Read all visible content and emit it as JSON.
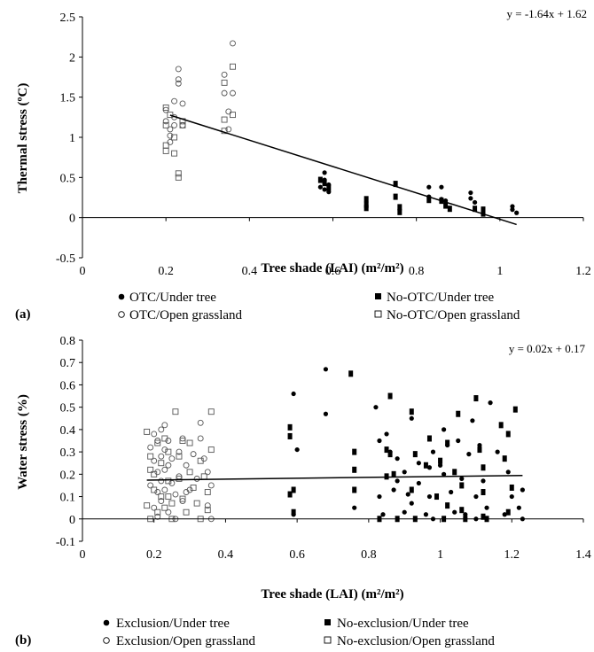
{
  "chart_data": [
    {
      "id": "a",
      "type": "scatter",
      "panel_label": "(a)",
      "xlabel": "Tree shade (LAI) (m²/m²)",
      "ylabel": "Thermal stress (ºC)",
      "xlim": [
        0,
        1.2
      ],
      "ylim": [
        -0.5,
        2.5
      ],
      "xticks": [
        0,
        0.2,
        0.4,
        0.6,
        0.8,
        1,
        1.2
      ],
      "xtick_labels": [
        "0",
        "0.2",
        "0.4",
        "0.6",
        "0.8",
        "1",
        "1.2"
      ],
      "yticks": [
        -0.5,
        0,
        0.5,
        1,
        1.5,
        2,
        2.5
      ],
      "ytick_labels": [
        "-0.5",
        "0",
        "0.5",
        "1",
        "1.5",
        "2",
        "2.5"
      ],
      "grid": false,
      "trendline": {
        "slope": -1.64,
        "intercept": 1.62,
        "x_range": [
          0.21,
          1.04
        ],
        "equation_label": "y = -1.64x + 1.62"
      },
      "legend": [
        {
          "label": "OTC/Under tree",
          "marker": "filled-circle"
        },
        {
          "label": "No-OTC/Under tree",
          "marker": "filled-square"
        },
        {
          "label": "OTC/Open grassland",
          "marker": "open-circle"
        },
        {
          "label": "No-OTC/Open grassland",
          "marker": "open-square"
        }
      ],
      "series": [
        {
          "marker": "filled-circle",
          "x": [
            0.58,
            0.58,
            0.59,
            0.57,
            0.58,
            0.59,
            0.83,
            0.83,
            0.86,
            0.86,
            0.87,
            0.93,
            0.93,
            0.94,
            1.03,
            1.03,
            1.04
          ],
          "y": [
            0.56,
            0.47,
            0.41,
            0.38,
            0.35,
            0.32,
            0.38,
            0.26,
            0.38,
            0.23,
            0.21,
            0.31,
            0.24,
            0.19,
            0.14,
            0.1,
            0.06
          ]
        },
        {
          "marker": "filled-square",
          "x": [
            0.57,
            0.58,
            0.59,
            0.68,
            0.68,
            0.68,
            0.75,
            0.75,
            0.76,
            0.76,
            0.83,
            0.86,
            0.87,
            0.88,
            0.94,
            0.96,
            0.96
          ],
          "y": [
            0.47,
            0.43,
            0.37,
            0.23,
            0.16,
            0.12,
            0.42,
            0.26,
            0.13,
            0.07,
            0.22,
            0.21,
            0.15,
            0.11,
            0.11,
            0.1,
            0.05
          ]
        },
        {
          "marker": "open-circle",
          "x": [
            0.2,
            0.2,
            0.21,
            0.21,
            0.21,
            0.22,
            0.22,
            0.22,
            0.23,
            0.23,
            0.23,
            0.24,
            0.24,
            0.34,
            0.34,
            0.35,
            0.35,
            0.36,
            0.36
          ],
          "y": [
            1.34,
            1.2,
            1.1,
            1.02,
            0.94,
            1.15,
            1.45,
            1.25,
            1.85,
            1.72,
            1.67,
            1.42,
            1.15,
            1.78,
            1.55,
            1.32,
            1.1,
            2.17,
            1.55
          ]
        },
        {
          "marker": "open-square",
          "x": [
            0.2,
            0.2,
            0.2,
            0.2,
            0.21,
            0.22,
            0.22,
            0.23,
            0.23,
            0.24,
            0.24,
            0.34,
            0.34,
            0.34,
            0.36,
            0.36
          ],
          "y": [
            1.37,
            1.15,
            0.9,
            0.83,
            1.28,
            1.0,
            0.8,
            0.55,
            0.5,
            1.2,
            1.15,
            1.68,
            1.22,
            1.08,
            1.88,
            1.28
          ]
        }
      ]
    },
    {
      "id": "b",
      "type": "scatter",
      "panel_label": "(b)",
      "xlabel": "Tree shade (LAI) (m²/m²)",
      "ylabel": "Water stress (%)",
      "xlim": [
        0,
        1.4
      ],
      "ylim": [
        -0.1,
        0.8
      ],
      "xticks": [
        0,
        0.2,
        0.4,
        0.6,
        0.8,
        1,
        1.2,
        1.4
      ],
      "xtick_labels": [
        "0",
        "0.2",
        "0.4",
        "0.6",
        "0.8",
        "1",
        "1.2",
        "1.4"
      ],
      "yticks": [
        -0.1,
        0,
        0.1,
        0.2,
        0.3,
        0.4,
        0.5,
        0.6,
        0.7,
        0.8
      ],
      "ytick_labels": [
        "-0.1",
        "0",
        "0.1",
        "0.2",
        "0.3",
        "0.4",
        "0.5",
        "0.6",
        "0.7",
        "0.8"
      ],
      "grid": false,
      "trendline": {
        "slope": 0.02,
        "intercept": 0.17,
        "x_range": [
          0.18,
          1.23
        ],
        "equation_label": "y = 0.02x + 0.17"
      },
      "legend": [
        {
          "label": "Exclusion/Under tree",
          "marker": "filled-circle"
        },
        {
          "label": "No-exclusion/Under tree",
          "marker": "filled-square"
        },
        {
          "label": "Exclusion/Open grassland",
          "marker": "open-circle"
        },
        {
          "label": "No-exclusion/Open grassland",
          "marker": "open-square"
        }
      ],
      "series": [
        {
          "marker": "filled-circle",
          "x": [
            0.59,
            0.6,
            0.59,
            0.68,
            0.68,
            0.76,
            0.82,
            0.83,
            0.83,
            0.84,
            0.86,
            0.88,
            0.88,
            0.9,
            0.9,
            0.91,
            0.92,
            0.93,
            0.94,
            0.94,
            0.96,
            0.97,
            0.98,
            0.98,
            1.0,
            1.01,
            1.02,
            1.03,
            1.04,
            1.05,
            1.06,
            1.07,
            1.08,
            1.09,
            1.1,
            1.1,
            1.11,
            1.12,
            1.13,
            1.14,
            1.16,
            1.18,
            1.19,
            1.2,
            1.22,
            1.23,
            1.23,
            0.85,
            0.87,
            0.92,
            0.97,
            1.01
          ],
          "y": [
            0.56,
            0.31,
            0.02,
            0.67,
            0.47,
            0.05,
            0.5,
            0.35,
            0.1,
            0.02,
            0.3,
            0.27,
            0.17,
            0.21,
            0.03,
            0.11,
            0.45,
            0.0,
            0.25,
            0.16,
            0.02,
            0.1,
            0.3,
            0.0,
            0.24,
            0.2,
            0.33,
            0.12,
            0.03,
            0.35,
            0.18,
            0.02,
            0.29,
            0.44,
            0.1,
            0.0,
            0.33,
            0.17,
            0.05,
            0.52,
            0.3,
            0.02,
            0.21,
            0.1,
            0.05,
            0.0,
            0.13,
            0.38,
            0.13,
            0.07,
            0.23,
            0.4
          ]
        },
        {
          "marker": "filled-square",
          "x": [
            0.58,
            0.58,
            0.59,
            0.58,
            0.59,
            0.75,
            0.76,
            0.76,
            0.76,
            0.83,
            0.85,
            0.86,
            0.86,
            0.87,
            0.88,
            0.92,
            0.92,
            0.93,
            0.96,
            0.97,
            0.99,
            1.0,
            1.01,
            1.02,
            1.04,
            1.05,
            1.06,
            1.06,
            1.07,
            1.1,
            1.11,
            1.12,
            1.12,
            1.13,
            1.17,
            1.18,
            1.19,
            1.19,
            1.2,
            1.21,
            0.85,
            0.93,
            1.02,
            1.12
          ],
          "y": [
            0.41,
            0.37,
            0.13,
            0.11,
            0.03,
            0.65,
            0.3,
            0.22,
            0.13,
            0.0,
            0.31,
            0.55,
            0.29,
            0.2,
            0.0,
            0.48,
            0.13,
            0.0,
            0.24,
            0.36,
            0.1,
            0.26,
            0.0,
            0.34,
            0.21,
            0.47,
            0.15,
            0.04,
            0.0,
            0.54,
            0.31,
            0.23,
            0.12,
            0.0,
            0.42,
            0.27,
            0.03,
            0.38,
            0.14,
            0.49,
            0.19,
            0.29,
            0.06,
            0.01
          ]
        },
        {
          "marker": "open-circle",
          "x": [
            0.19,
            0.19,
            0.2,
            0.2,
            0.2,
            0.21,
            0.21,
            0.21,
            0.21,
            0.22,
            0.22,
            0.22,
            0.22,
            0.23,
            0.23,
            0.23,
            0.23,
            0.24,
            0.24,
            0.24,
            0.25,
            0.25,
            0.26,
            0.26,
            0.27,
            0.27,
            0.28,
            0.28,
            0.29,
            0.3,
            0.31,
            0.32,
            0.33,
            0.34,
            0.35,
            0.35,
            0.36,
            0.36,
            0.33,
            0.29
          ],
          "y": [
            0.32,
            0.15,
            0.38,
            0.26,
            0.05,
            0.35,
            0.21,
            0.12,
            0.01,
            0.4,
            0.28,
            0.17,
            0.08,
            0.42,
            0.31,
            0.22,
            0.13,
            0.35,
            0.24,
            0.03,
            0.27,
            0.16,
            0.11,
            0.0,
            0.3,
            0.19,
            0.36,
            0.08,
            0.24,
            0.13,
            0.29,
            0.18,
            0.43,
            0.27,
            0.06,
            0.21,
            0.15,
            0.0,
            0.36,
            0.12
          ]
        },
        {
          "marker": "open-square",
          "x": [
            0.18,
            0.18,
            0.19,
            0.19,
            0.2,
            0.2,
            0.21,
            0.21,
            0.22,
            0.22,
            0.23,
            0.23,
            0.24,
            0.24,
            0.25,
            0.25,
            0.26,
            0.27,
            0.27,
            0.28,
            0.28,
            0.29,
            0.3,
            0.3,
            0.31,
            0.32,
            0.33,
            0.33,
            0.34,
            0.35,
            0.35,
            0.36,
            0.36,
            0.24,
            0.19
          ],
          "y": [
            0.39,
            0.06,
            0.28,
            0.0,
            0.2,
            0.13,
            0.34,
            0.03,
            0.25,
            0.1,
            0.36,
            0.05,
            0.3,
            0.17,
            0.07,
            0.0,
            0.48,
            0.28,
            0.18,
            0.09,
            0.35,
            0.03,
            0.34,
            0.21,
            0.14,
            0.07,
            0.26,
            0.0,
            0.19,
            0.04,
            0.12,
            0.48,
            0.31,
            0.1,
            0.22
          ]
        }
      ]
    }
  ]
}
